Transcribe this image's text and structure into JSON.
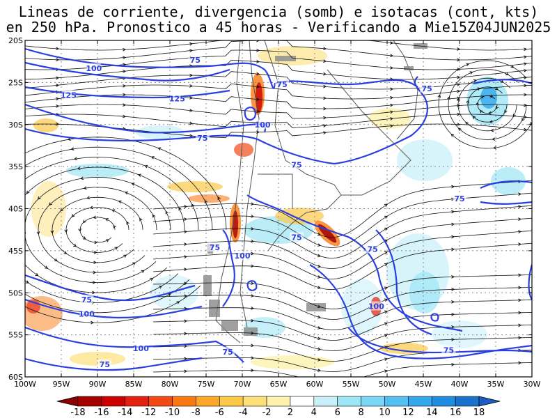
{
  "title": {
    "line1": "Lineas de corriente, divergencia (somb) e isotacas (cont, kts)",
    "line2": "en 250 hPa. Pronostico a 45 horas - Verificando a Mie15Z04JUN2025"
  },
  "axes": {
    "lat_labels": [
      "20S",
      "25S",
      "30S",
      "35S",
      "40S",
      "45S",
      "50S",
      "55S",
      "60S"
    ],
    "lon_labels": [
      "100W",
      "95W",
      "90W",
      "85W",
      "80W",
      "75W",
      "70W",
      "65W",
      "60W",
      "55W",
      "50W",
      "45W",
      "40W",
      "35W",
      "30W"
    ]
  },
  "isotach_labels": [
    {
      "text": "100",
      "lon": -90.5,
      "lat": -23.3
    },
    {
      "text": "75",
      "lon": -76.5,
      "lat": -22.3
    },
    {
      "text": "125",
      "lon": -94,
      "lat": -26.5
    },
    {
      "text": "125",
      "lon": -79,
      "lat": -26.9
    },
    {
      "text": "75",
      "lon": -64.5,
      "lat": -25.2
    },
    {
      "text": "75",
      "lon": -44.5,
      "lat": -25.7
    },
    {
      "text": "100",
      "lon": -67.2,
      "lat": -30.0
    },
    {
      "text": "75",
      "lon": -75.5,
      "lat": -31.6
    },
    {
      "text": "75",
      "lon": -62.5,
      "lat": -34.8
    },
    {
      "text": "75",
      "lon": -40,
      "lat": -38.8
    },
    {
      "text": "75",
      "lon": -73.8,
      "lat": -44.6
    },
    {
      "text": "100",
      "lon": -70,
      "lat": -45.6
    },
    {
      "text": "75",
      "lon": -62.5,
      "lat": -43.4
    },
    {
      "text": "75",
      "lon": -52,
      "lat": -44.8
    },
    {
      "text": "75",
      "lon": -91.5,
      "lat": -50.8
    },
    {
      "text": "100",
      "lon": -91.5,
      "lat": -52.5
    },
    {
      "text": "100",
      "lon": -51.5,
      "lat": -51.6
    },
    {
      "text": "100",
      "lon": -84,
      "lat": -56.6
    },
    {
      "text": "75",
      "lon": -72,
      "lat": -57.0
    },
    {
      "text": "75",
      "lon": -89,
      "lat": -58.5
    },
    {
      "text": "75",
      "lon": -41.5,
      "lat": -56.8
    }
  ],
  "colorbar": {
    "labels": [
      "-18",
      "-16",
      "-14",
      "-12",
      "-10",
      "-8",
      "-6",
      "-4",
      "-2",
      "2",
      "4",
      "6",
      "8",
      "10",
      "12",
      "14",
      "16",
      "18"
    ],
    "colors": [
      "#a50000",
      "#cc0000",
      "#e32010",
      "#f24a14",
      "#fa7a12",
      "#fca62a",
      "#fbc948",
      "#fde07a",
      "#fef2ae",
      "#ffffff",
      "#c8f0fa",
      "#9ee6f6",
      "#78d6f6",
      "#55bff4",
      "#33a6ec",
      "#1f8ee0",
      "#1a72cc"
    ]
  },
  "colors": {
    "isotach": "#2a3fe0",
    "streamline": "#111111",
    "border": "#555555",
    "grid": "#888888"
  }
}
